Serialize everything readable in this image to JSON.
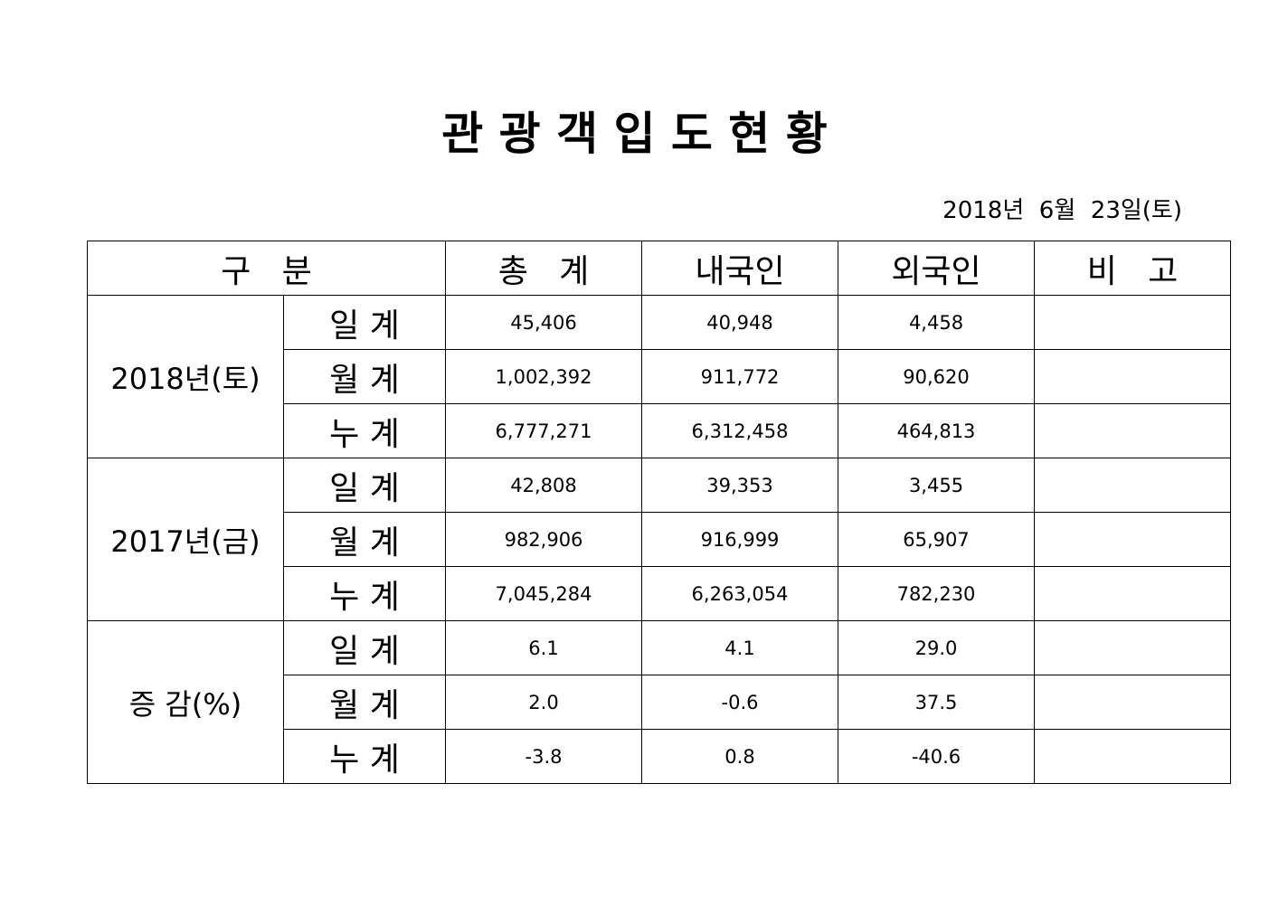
{
  "header": {
    "title": "관 광 객 입 도 현 황",
    "date": "2018년  6월  23일(토)"
  },
  "table": {
    "columns": [
      "구   분",
      "총   계",
      "내국인",
      "외국인",
      "비   고"
    ],
    "groups": [
      {
        "label": "2018년(토)",
        "rows": [
          {
            "label": "일 계",
            "values": [
              "45,406",
              "40,948",
              "4,458"
            ]
          },
          {
            "label": "월 계",
            "values": [
              "1,002,392",
              "911,772",
              "90,620"
            ]
          },
          {
            "label": "누 계",
            "values": [
              "6,777,271",
              "6,312,458",
              "464,813"
            ]
          }
        ]
      },
      {
        "label": "2017년(금)",
        "rows": [
          {
            "label": "일 계",
            "values": [
              "42,808",
              "39,353",
              "3,455"
            ]
          },
          {
            "label": "월 계",
            "values": [
              "982,906",
              "916,999",
              "65,907"
            ]
          },
          {
            "label": "누 계",
            "values": [
              "7,045,284",
              "6,263,054",
              "782,230"
            ]
          }
        ]
      },
      {
        "label": "증 감(%)",
        "rows": [
          {
            "label": "일 계",
            "values": [
              "6.1",
              "4.1",
              "29.0"
            ]
          },
          {
            "label": "월 계",
            "values": [
              "2.0",
              "-0.6",
              "37.5"
            ]
          },
          {
            "label": "누 계",
            "values": [
              "-3.8",
              "0.8",
              "-40.6"
            ]
          }
        ]
      }
    ]
  }
}
